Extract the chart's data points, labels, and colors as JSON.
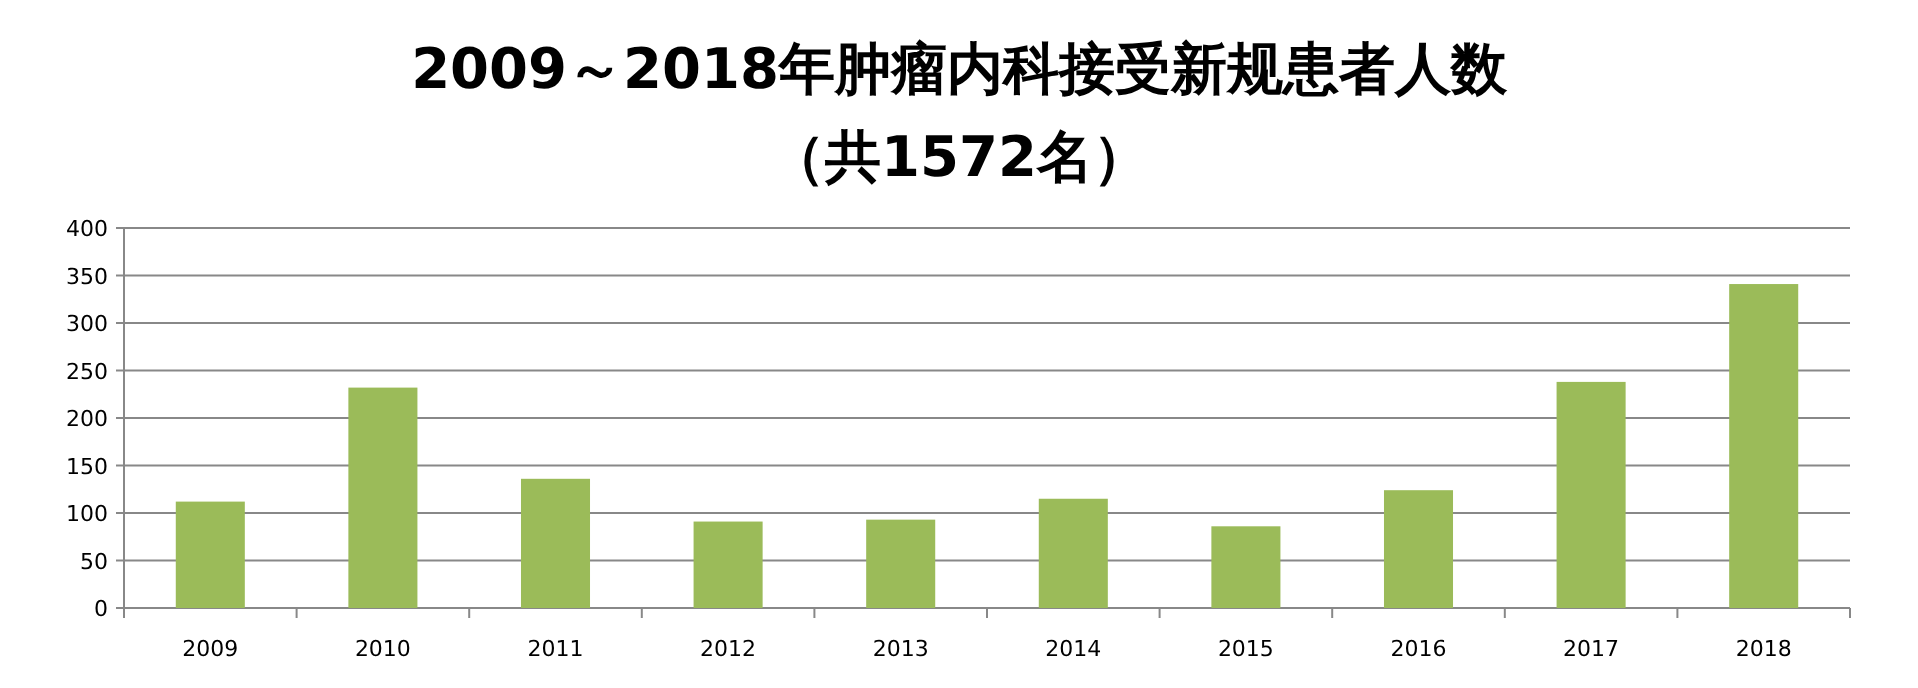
{
  "chart_data": {
    "type": "bar",
    "title": "2009～2018年肿瘤内科接受新规患者人数",
    "subtitle": "（共1572名）",
    "categories": [
      "2009",
      "2010",
      "2011",
      "2012",
      "2013",
      "2014",
      "2015",
      "2016",
      "2017",
      "2018"
    ],
    "values": [
      112,
      232,
      136,
      91,
      93,
      115,
      86,
      124,
      238,
      341
    ],
    "color": "#9bbb59",
    "ylim": [
      0,
      400
    ],
    "yticks": [
      0,
      50,
      100,
      150,
      200,
      250,
      300,
      350,
      400
    ],
    "grid": "y",
    "legend": false
  }
}
